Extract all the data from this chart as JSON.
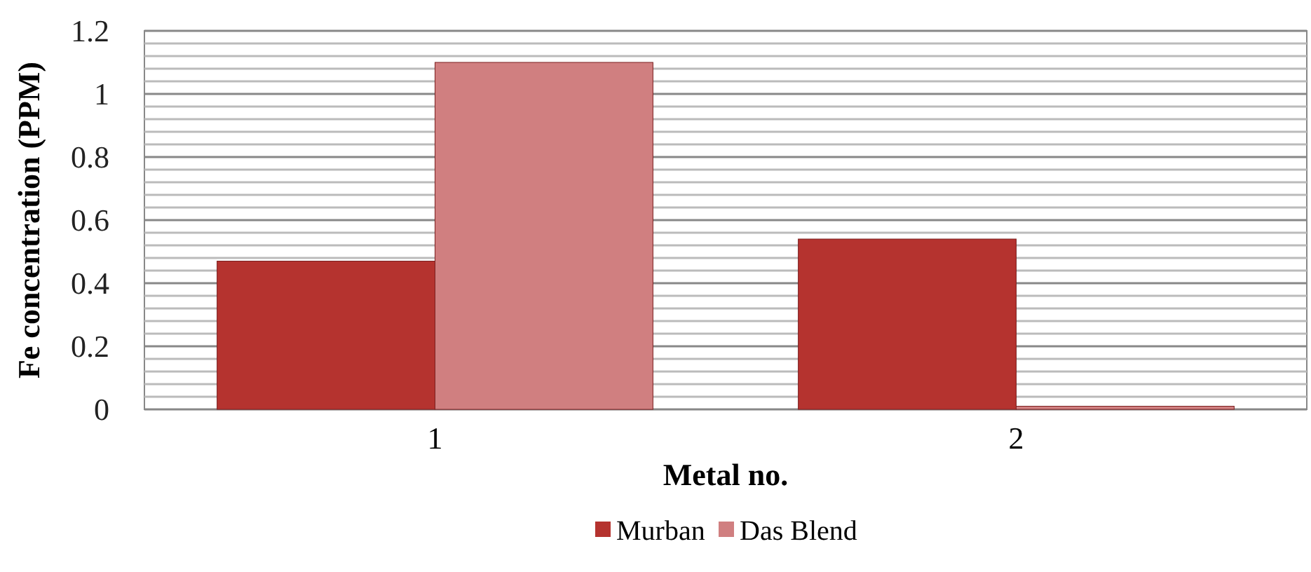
{
  "chart_data": {
    "type": "bar",
    "xlabel": "Metal no.",
    "ylabel": "Fe concentration (PPM)",
    "categories": [
      "1",
      "2"
    ],
    "series": [
      {
        "name": "Murban",
        "color": "#b5332f",
        "values": [
          0.47,
          0.54
        ]
      },
      {
        "name": "Das Blend",
        "color": "#d07f80",
        "values": [
          1.1,
          0.01
        ]
      }
    ],
    "ylim": [
      0,
      1.2
    ],
    "yticks": [
      0,
      {
        "value": 0.04,
        "label": null
      },
      {
        "value": 0.08,
        "label": null
      },
      {
        "value": 0.12,
        "label": null
      },
      {
        "value": 0.16,
        "label": null
      },
      0.2,
      {
        "value": 0.24,
        "label": null
      },
      {
        "value": 0.28,
        "label": null
      },
      {
        "value": 0.32,
        "label": null
      },
      {
        "value": 0.36,
        "label": null
      },
      0.4,
      {
        "value": 0.44,
        "label": null
      },
      {
        "value": 0.48,
        "label": null
      },
      {
        "value": 0.52,
        "label": null
      },
      {
        "value": 0.56,
        "label": null
      },
      0.6,
      {
        "value": 0.64,
        "label": null
      },
      {
        "value": 0.68,
        "label": null
      },
      {
        "value": 0.72,
        "label": null
      },
      {
        "value": 0.76,
        "label": null
      },
      0.8,
      {
        "value": 0.84,
        "label": null
      },
      {
        "value": 0.88,
        "label": null
      },
      {
        "value": 0.92,
        "label": null
      },
      {
        "value": 0.96,
        "label": null
      },
      1,
      {
        "value": 1.04,
        "label": null
      },
      {
        "value": 1.08,
        "label": null
      },
      {
        "value": 1.12,
        "label": null
      },
      {
        "value": 1.16,
        "label": null
      },
      1.2
    ],
    "grid": "y",
    "legend": "bottom"
  }
}
